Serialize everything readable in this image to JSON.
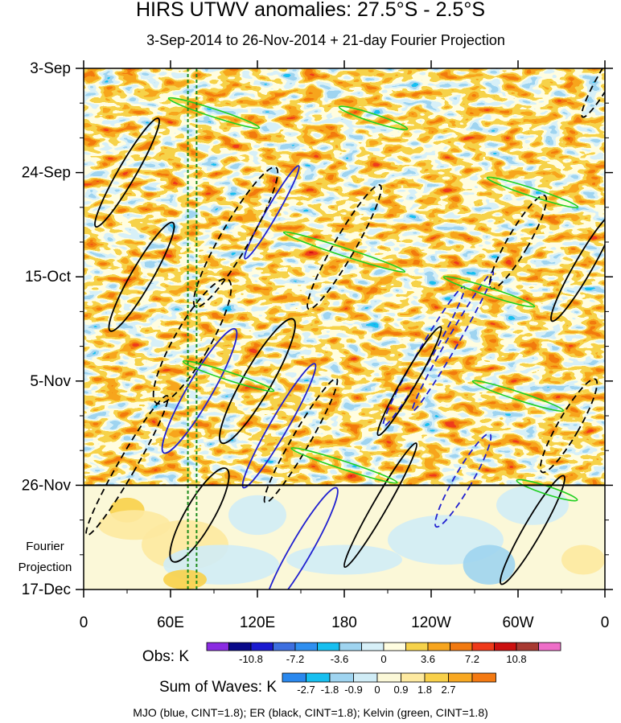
{
  "chart_data": {
    "type": "heatmap",
    "title": "HIRS UTWV anomalies: 27.5°S - 2.5°S",
    "subtitle": "3-Sep-2014 to 26-Nov-2014 + 21-day Fourier Projection",
    "x_ticks": [
      "0",
      "60E",
      "120E",
      "180",
      "120W",
      "60W",
      "0"
    ],
    "x_tick_lons": [
      0,
      60,
      120,
      180,
      240,
      300,
      360
    ],
    "y_ticks": [
      "3-Sep",
      "24-Sep",
      "15-Oct",
      "5-Nov",
      "26-Nov",
      "17-Dec"
    ],
    "y_tick_days": [
      0,
      21,
      42,
      63,
      84,
      105
    ],
    "xlim": [
      0,
      360
    ],
    "ylim_days": [
      0,
      105
    ],
    "obs_end_day": 84,
    "projection_label": [
      "Fourier",
      "Projection"
    ],
    "reference_lons": [
      72,
      78
    ],
    "obs_colorbar": {
      "label": "Obs: K",
      "tick_labels": [
        "-10.8",
        "-7.2",
        "-3.6",
        "0",
        "3.6",
        "7.2",
        "10.8"
      ],
      "colors": [
        "#8a2be2",
        "#0a0a8a",
        "#1a1ad0",
        "#3d6fe0",
        "#2f8ff0",
        "#17bff0",
        "#9fd4f0",
        "#d7f0f8",
        "#fffde0",
        "#f6d24a",
        "#f7a51e",
        "#f27a10",
        "#ef3a1a",
        "#cc1010",
        "#a83a32",
        "#ee6ec8"
      ]
    },
    "waves_colorbar": {
      "label": "Sum of Waves: K",
      "tick_labels": [
        "-2.7",
        "-1.8",
        "-0.9",
        "0",
        "0.9",
        "1.8",
        "2.7"
      ],
      "colors": [
        "#2a88ee",
        "#17bff0",
        "#9fd4f0",
        "#d0ecf6",
        "#fbf8d8",
        "#fde9a0",
        "#f8d04a",
        "#f8a822",
        "#f47a12"
      ]
    },
    "contours": [
      {
        "wave": "MJO",
        "color": "#2020d0",
        "centers": [
          [
            130,
            29,
            2,
            12
          ],
          [
            235,
            58,
            4,
            18
          ],
          [
            135,
            72,
            5,
            16
          ],
          [
            255,
            55,
            -3,
            18
          ],
          [
            80,
            65,
            7,
            16
          ],
          [
            262,
            83,
            5,
            12
          ],
          [
            150,
            97,
            -6,
            16
          ]
        ]
      },
      {
        "wave": "ER",
        "color": "#000000",
        "centers": [
          [
            30,
            21,
            5,
            14
          ],
          [
            105,
            34,
            8,
            18
          ],
          [
            40,
            42,
            6,
            14
          ],
          [
            180,
            36,
            6,
            16
          ],
          [
            225,
            63,
            4,
            14
          ],
          [
            300,
            35,
            6,
            12
          ],
          [
            345,
            40,
            5,
            14
          ],
          [
            75,
            55,
            10,
            16
          ],
          [
            120,
            63,
            8,
            16
          ],
          [
            150,
            75,
            5,
            16
          ],
          [
            205,
            88,
            4,
            16
          ],
          [
            30,
            80,
            5,
            18
          ],
          [
            80,
            90,
            8,
            12
          ],
          [
            335,
            72,
            6,
            12
          ],
          [
            310,
            93,
            5,
            14
          ],
          [
            360,
            2,
            4,
            10
          ]
        ]
      },
      {
        "wave": "Kelvin",
        "color": "#20d020",
        "centers": [
          [
            90,
            9,
            -10,
            60
          ],
          [
            200,
            10,
            -12,
            45
          ],
          [
            310,
            25,
            -14,
            60
          ],
          [
            180,
            37,
            -13,
            80
          ],
          [
            280,
            45,
            -12,
            60
          ],
          [
            100,
            62,
            -14,
            60
          ],
          [
            300,
            66,
            -15,
            60
          ],
          [
            180,
            80,
            -15,
            70
          ],
          [
            320,
            85,
            -14,
            40
          ]
        ]
      }
    ]
  },
  "footer": "MJO (blue, CINT=1.8); ER (black, CINT=1.8); Kelvin (green, CINT=1.8)"
}
